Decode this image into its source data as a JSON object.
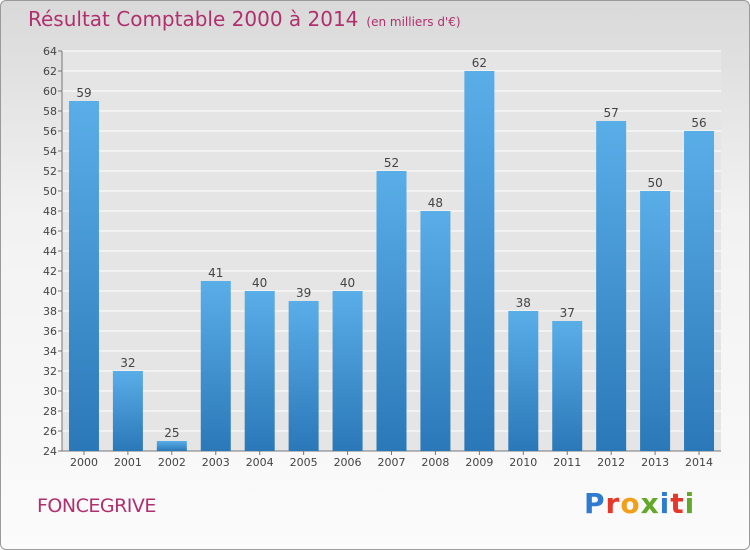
{
  "title": "Résultat Comptable 2000 à 2014",
  "unit_note": "(en milliers d'€)",
  "commune": "FONCEGRIVE",
  "logo": {
    "text": "Proxiti",
    "colors": [
      "#2f7bd0",
      "#e5372a",
      "#f2a01c",
      "#63a829",
      "#2f7bd0",
      "#e5372a",
      "#63a829"
    ]
  },
  "colors": {
    "title": "#b0306e",
    "bar_top": "#5aaee8",
    "bar_bottom": "#2b78b8",
    "grid": "#ffffff"
  },
  "chart_data": {
    "type": "bar",
    "title": "Résultat Comptable 2000 à 2014",
    "categories": [
      "2000",
      "2001",
      "2002",
      "2003",
      "2004",
      "2005",
      "2006",
      "2007",
      "2008",
      "2009",
      "2010",
      "2011",
      "2012",
      "2013",
      "2014"
    ],
    "values": [
      59,
      32,
      25,
      41,
      40,
      39,
      40,
      52,
      48,
      62,
      38,
      37,
      57,
      50,
      56
    ],
    "ylim": [
      24,
      64
    ],
    "yticks": [
      24,
      26,
      28,
      30,
      32,
      34,
      36,
      38,
      40,
      42,
      44,
      46,
      48,
      50,
      52,
      54,
      56,
      58,
      60,
      62,
      64
    ],
    "xlabel": "",
    "ylabel": "",
    "grid": true,
    "data_labels": true
  }
}
